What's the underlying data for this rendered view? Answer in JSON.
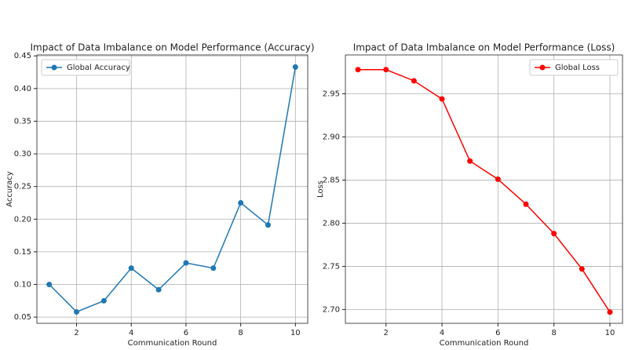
{
  "chart_data": [
    {
      "type": "line",
      "title": "Impact of Data Imbalance on Model Performance (Accuracy)",
      "x_label": "Communication Round",
      "y_label": "Accuracy",
      "x": [
        1,
        2,
        3,
        4,
        5,
        6,
        7,
        8,
        9,
        10
      ],
      "series": [
        {
          "name": "Global Accuracy",
          "color": "#1f77b4",
          "values": [
            0.1,
            0.058,
            0.075,
            0.125,
            0.092,
            0.133,
            0.125,
            0.225,
            0.191,
            0.433
          ]
        }
      ],
      "xlim": [
        0.55,
        10.45
      ],
      "ylim": [
        0.0405,
        0.4515
      ],
      "xticks": [
        2,
        4,
        6,
        8,
        10
      ],
      "yticks": [
        {
          "value": 0.05,
          "label": "0.05"
        },
        {
          "value": 0.1,
          "label": "0.10"
        },
        {
          "value": 0.15,
          "label": "0.15"
        },
        {
          "value": 0.2,
          "label": "0.20"
        },
        {
          "value": 0.25,
          "label": "0.25"
        },
        {
          "value": 0.3,
          "label": "0.30"
        },
        {
          "value": 0.35,
          "label": "0.35"
        },
        {
          "value": 0.4,
          "label": "0.40"
        },
        {
          "value": 0.45,
          "label": "0.45"
        }
      ],
      "grid": true,
      "legend": "upper left"
    },
    {
      "type": "line",
      "title": "Impact of Data Imbalance on Model Performance (Loss)",
      "x_label": "Communication Round",
      "y_label": "Loss",
      "x": [
        1,
        2,
        3,
        4,
        5,
        6,
        7,
        8,
        9,
        10
      ],
      "series": [
        {
          "name": "Global Loss",
          "color": "#ff0000",
          "values": [
            2.978,
            2.978,
            2.965,
            2.944,
            2.872,
            2.851,
            2.822,
            2.788,
            2.747,
            2.697
          ]
        }
      ],
      "xlim": [
        0.55,
        10.45
      ],
      "ylim": [
        2.684,
        2.995
      ],
      "xticks": [
        2,
        4,
        6,
        8,
        10
      ],
      "yticks": [
        {
          "value": 2.7,
          "label": "2.70"
        },
        {
          "value": 2.75,
          "label": "2.75"
        },
        {
          "value": 2.8,
          "label": "2.80"
        },
        {
          "value": 2.85,
          "label": "2.85"
        },
        {
          "value": 2.9,
          "label": "2.90"
        },
        {
          "value": 2.95,
          "label": "2.95"
        }
      ],
      "grid": true,
      "legend": "upper right"
    }
  ]
}
